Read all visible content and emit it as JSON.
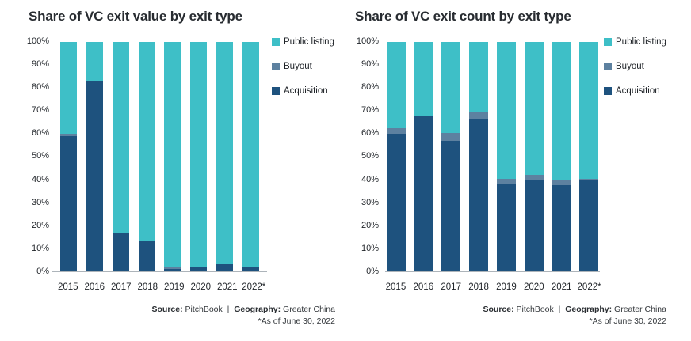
{
  "colors": {
    "public_listing": "#3ebfc7",
    "buyout": "#5d81a0",
    "acquisition": "#1e527e",
    "title_text": "#282c31",
    "axis_text": "#1f2328",
    "axis_line": "#adb4ba",
    "background": "#ffffff"
  },
  "chart_data": [
    {
      "type": "bar",
      "stacked": true,
      "unit": "percent",
      "title": "Share of VC exit value by exit type",
      "categories": [
        "2015",
        "2016",
        "2017",
        "2018",
        "2019",
        "2020",
        "2021",
        "2022*"
      ],
      "series": [
        {
          "name": "Acquisition",
          "color": "#1e527e",
          "values": [
            59,
            83,
            17,
            13,
            1,
            2,
            3,
            1.8
          ]
        },
        {
          "name": "Buyout",
          "color": "#5d81a0",
          "values": [
            1,
            0,
            0,
            0,
            0.7,
            0,
            0,
            0
          ]
        },
        {
          "name": "Public listing",
          "color": "#3ebfc7",
          "values": [
            40,
            17,
            83,
            87,
            98.3,
            98,
            97,
            98.2
          ]
        }
      ],
      "ylim": [
        0,
        100
      ],
      "yticks": [
        "100%",
        "90%",
        "80%",
        "70%",
        "60%",
        "50%",
        "40%",
        "30%",
        "20%",
        "10%",
        "0%"
      ],
      "grid": false,
      "legend_position": "right",
      "legend_order": [
        "Public listing",
        "Buyout",
        "Acquisition"
      ],
      "footer": {
        "source_label": "Source:",
        "source_value": "PitchBook",
        "divider": "|",
        "geography_label": "Geography:",
        "geography_value": "Greater China",
        "footnote": "*As of June 30, 2022"
      }
    },
    {
      "type": "bar",
      "stacked": true,
      "unit": "percent",
      "title": "Share of VC exit count by exit type",
      "categories": [
        "2015",
        "2016",
        "2017",
        "2018",
        "2019",
        "2020",
        "2021",
        "2022*"
      ],
      "series": [
        {
          "name": "Acquisition",
          "color": "#1e527e",
          "values": [
            60,
            67.5,
            57,
            66.5,
            38,
            39.5,
            37.5,
            40
          ]
        },
        {
          "name": "Buyout",
          "color": "#5d81a0",
          "values": [
            2.5,
            0.4,
            3.5,
            3.2,
            2.5,
            2.5,
            2,
            0.5
          ]
        },
        {
          "name": "Public listing",
          "color": "#3ebfc7",
          "values": [
            37.5,
            32.1,
            39.5,
            30.3,
            59.5,
            58,
            60.5,
            59.5
          ]
        }
      ],
      "ylim": [
        0,
        100
      ],
      "yticks": [
        "100%",
        "90%",
        "80%",
        "70%",
        "60%",
        "50%",
        "40%",
        "30%",
        "20%",
        "10%",
        "0%"
      ],
      "grid": false,
      "legend_position": "right",
      "legend_order": [
        "Public listing",
        "Buyout",
        "Acquisition"
      ],
      "footer": {
        "source_label": "Source:",
        "source_value": "PitchBook",
        "divider": "|",
        "geography_label": "Geography:",
        "geography_value": "Greater China",
        "footnote": "*As of June 30, 2022"
      }
    }
  ]
}
